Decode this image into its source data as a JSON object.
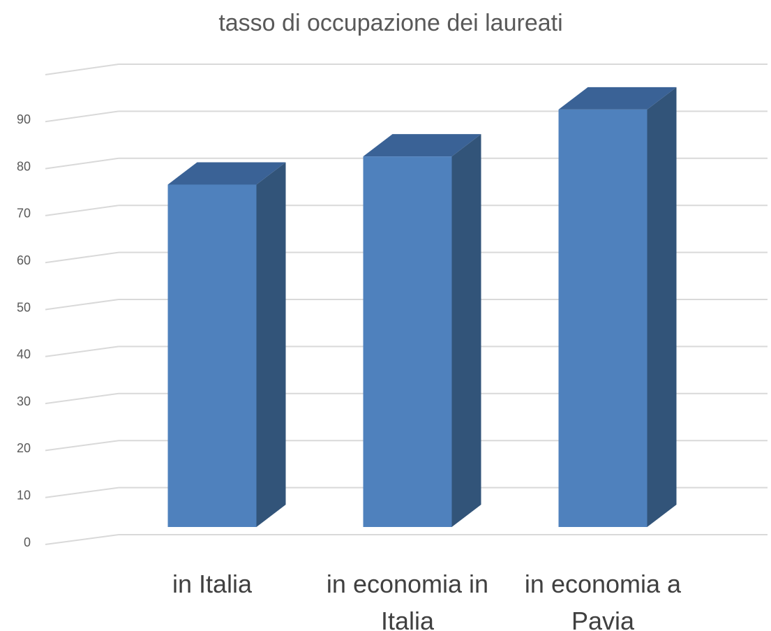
{
  "chart_data": {
    "type": "bar3d",
    "title": "tasso di occupazione dei laureati",
    "categories": [
      "in Italia",
      "in economia in Italia",
      "in economia a Pavia"
    ],
    "values": [
      73,
      79,
      89
    ],
    "color": "#4f81bd",
    "ylim": [
      0,
      100
    ],
    "yticks": [
      0,
      10,
      20,
      30,
      40,
      50,
      60,
      70,
      80,
      90
    ],
    "grid": true
  }
}
